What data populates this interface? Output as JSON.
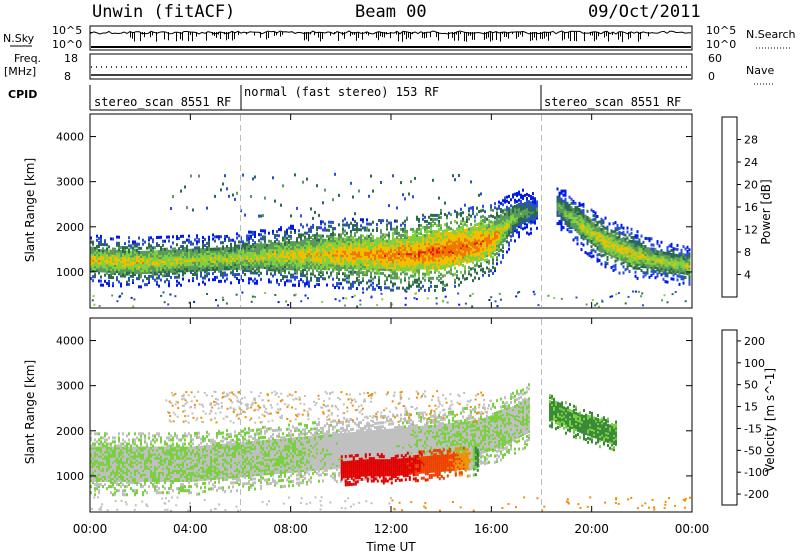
{
  "header": {
    "station": "Unwin (fitACF)",
    "beam": "Beam 00",
    "date": "09/Oct/2011"
  },
  "left_labels": {
    "nsky": "N.Sky",
    "freq_line1": "Freq.",
    "freq_line2": "[MHz]",
    "cpid": "CPID"
  },
  "right_labels": {
    "nsearch": "N.Search",
    "nave": "Nave"
  },
  "noise_panel": {
    "left_ticks": [
      "10^5",
      "10^0"
    ],
    "right_ticks": [
      "10^5",
      "10^0"
    ]
  },
  "freq_panel": {
    "left_ticks": [
      "18",
      "8"
    ],
    "right_ticks": [
      "60",
      "0"
    ]
  },
  "cpid_panel": {
    "segments": [
      {
        "label": "stereo_scan 8551 RF",
        "start": 0,
        "end": 6
      },
      {
        "label": "normal (fast stereo) 153 RF",
        "start": 6,
        "end": 18
      },
      {
        "label": "stereo_scan 8551 RF",
        "start": 18,
        "end": 24
      }
    ]
  },
  "colors": {
    "power_scale": [
      "#0018e8",
      "#2a4fd6",
      "#2b6a4a",
      "#5a9a5a",
      "#80d040",
      "#f0c000",
      "#f07800",
      "#e81800"
    ],
    "velocity_scale": [
      "#1830c8",
      "#2a6a50",
      "#3a8a3a",
      "#7ad040",
      "#c0c0c0",
      "#f09000",
      "#f04000",
      "#e00000"
    ]
  },
  "chart_data": [
    {
      "type": "heatmap",
      "title": "",
      "xlabel": "",
      "ylabel": "Slant Range [km]",
      "x_ticks": [
        "00:00",
        "04:00",
        "08:00",
        "12:00",
        "16:00",
        "20:00",
        "00:00"
      ],
      "y_ticks": [
        1000,
        2000,
        3000,
        4000
      ],
      "xlim": [
        0,
        24
      ],
      "ylim": [
        200,
        4500
      ],
      "colorbar_label": "Power [dB]",
      "colorbar_ticks": [
        4,
        8,
        12,
        16,
        20,
        24,
        28
      ],
      "colorbar_range": [
        0,
        32
      ],
      "series": [
        {
          "x": [
            0,
            2,
            4,
            6,
            8,
            10,
            12,
            14,
            16,
            17,
            17.8
          ],
          "center_km": [
            1300,
            1250,
            1300,
            1350,
            1400,
            1450,
            1400,
            1500,
            1750,
            2300,
            2400
          ],
          "half_width_km": [
            250,
            250,
            250,
            250,
            300,
            350,
            350,
            400,
            350,
            250,
            200
          ],
          "power_db": [
            22,
            22,
            20,
            20,
            22,
            24,
            26,
            28,
            26,
            16,
            12
          ]
        },
        {
          "x": [
            18.6,
            19.5,
            20.5,
            21.5,
            22.5,
            23.9
          ],
          "center_km": [
            2500,
            2100,
            1700,
            1450,
            1300,
            1150
          ],
          "half_width_km": [
            200,
            250,
            250,
            250,
            200,
            200
          ],
          "power_db": [
            16,
            20,
            22,
            22,
            20,
            20
          ]
        }
      ]
    },
    {
      "type": "heatmap",
      "title": "",
      "xlabel": "Time UT",
      "ylabel": "Slant Range [km]",
      "x_ticks": [
        "00:00",
        "04:00",
        "08:00",
        "12:00",
        "16:00",
        "20:00",
        "00:00"
      ],
      "y_ticks": [
        1000,
        2000,
        3000,
        4000
      ],
      "xlim": [
        0,
        24
      ],
      "ylim": [
        200,
        4500
      ],
      "colorbar_label": "Velocity [m s^-1]",
      "colorbar_ticks": [
        200,
        100,
        50,
        15,
        -15,
        -50,
        -100,
        -200
      ],
      "colorbar_range": [
        -250,
        250
      ],
      "series": [
        {
          "x": [
            0,
            4,
            8,
            10,
            12,
            14,
            15.5,
            16.5,
            17.5
          ],
          "center_km": [
            1300,
            1300,
            1500,
            1600,
            1700,
            1800,
            1900,
            2100,
            2400
          ],
          "velocity": [
            0,
            0,
            0,
            -10,
            -10,
            0,
            0,
            0,
            0
          ]
        },
        {
          "x": [
            10,
            11,
            12,
            13,
            14,
            15,
            15.5
          ],
          "center_km": [
            1150,
            1200,
            1200,
            1250,
            1300,
            1350,
            1400
          ],
          "velocity": [
            -200,
            -200,
            -200,
            -150,
            -100,
            -60,
            80
          ]
        },
        {
          "x": [
            18.3,
            19.5,
            21
          ],
          "center_km": [
            2500,
            2200,
            1900
          ],
          "velocity": [
            40,
            40,
            40
          ]
        }
      ]
    }
  ]
}
